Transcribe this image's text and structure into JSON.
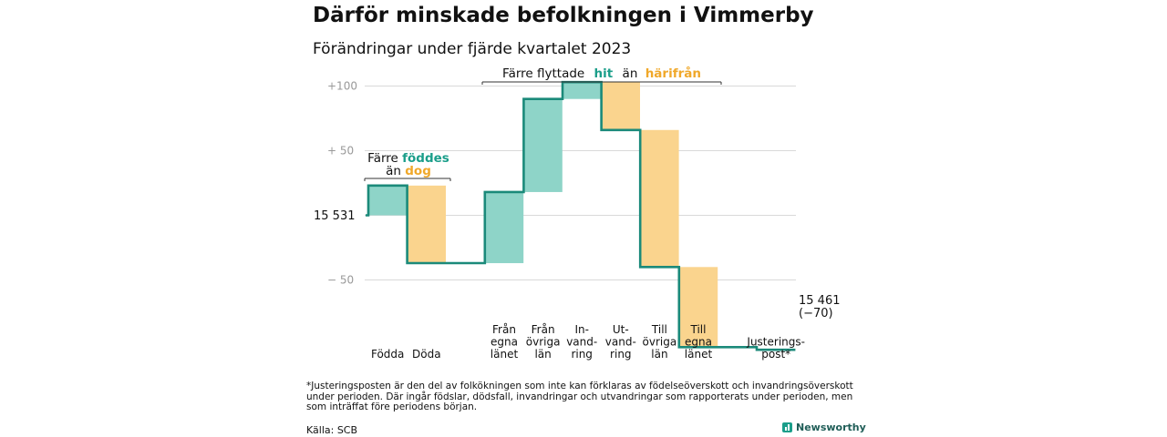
{
  "title": "Därför minskade befolkningen i Vimmerby",
  "subtitle": "Förändringar under fjärde kvartalet 2023",
  "footnote": "*Justeringsposten är den del av folkökningen som inte kan förklaras av födelseöverskott och invandringsöverskott under perioden. Där ingår födslar, dödsfall, invandringar och utvandringar som rapporterats under perioden, men som inträffat före periodens början.",
  "source": "Källa: SCB",
  "brand": "Newsworthy",
  "colors": {
    "positive": "#8ed4c8",
    "negative": "#fad48e",
    "line": "#1b8a7a",
    "hit": "#1b9e8a",
    "harifran": "#f0a82a",
    "grid": "#d9d9d9",
    "axis_text": "#999999"
  },
  "chart_data": {
    "type": "waterfall",
    "start_value": 15531,
    "start_label": "15  531",
    "end_value": 15461,
    "end_label_line1": "15 461",
    "end_label_line2": "(−70)",
    "ylim": [
      -70,
      100
    ],
    "ytick_values": [
      100,
      50,
      -50
    ],
    "ytick_labels": [
      "+100",
      "+  50",
      "−  50"
    ],
    "grid": true,
    "steps": [
      {
        "label": [
          "Födda"
        ],
        "value": 23
      },
      {
        "label": [
          "Döda"
        ],
        "value": -60
      },
      {
        "label": [
          "Från",
          "egna",
          "länet"
        ],
        "value": 55
      },
      {
        "label": [
          "Från",
          "övriga",
          "län"
        ],
        "value": 72
      },
      {
        "label": [
          "In-",
          "vand-",
          "ring"
        ],
        "value": 13
      },
      {
        "label": [
          "Ut-",
          "vand-",
          "ring"
        ],
        "value": -37
      },
      {
        "label": [
          "Till",
          "övriga",
          "län"
        ],
        "value": -106
      },
      {
        "label": [
          "Till",
          "egna",
          "länet"
        ],
        "value": -62
      },
      {
        "label": [
          "Justerings-",
          "post*"
        ],
        "value": -2
      }
    ],
    "annotations": {
      "births_line1": "Färre",
      "births_hit": "föddes",
      "births_line2": "än",
      "births_dog": "dog",
      "migration_prefix": "Färre flyttade",
      "migration_hit": "hit",
      "migration_mid": "än",
      "migration_harifran": "härifrån"
    }
  }
}
